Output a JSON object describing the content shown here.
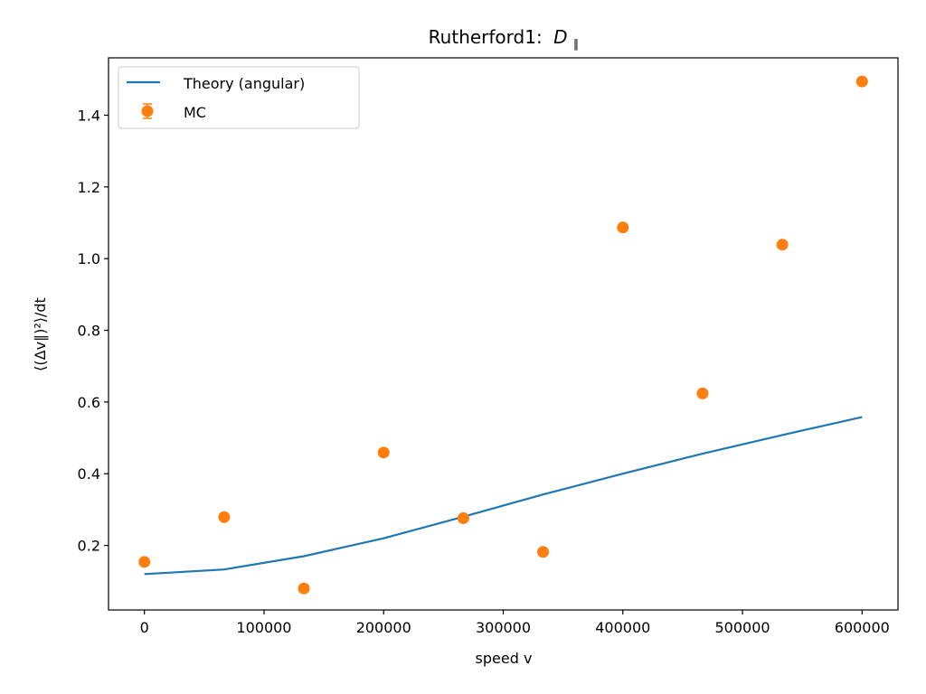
{
  "chart_data": {
    "type": "scatter",
    "title": "Rutherford1:",
    "title_math": "D",
    "title_sub": "∥",
    "xlabel": "speed v",
    "ylabel": "⟨(Δv∥)²⟩/dt",
    "xlim": [
      -30000,
      630000
    ],
    "ylim": [
      0.02,
      1.56
    ],
    "x_ticks": [
      0,
      100000,
      200000,
      300000,
      400000,
      500000,
      600000
    ],
    "x_tick_labels": [
      "0",
      "100000",
      "200000",
      "300000",
      "400000",
      "500000",
      "600000"
    ],
    "y_ticks": [
      0.2,
      0.4,
      0.6,
      0.8,
      1.0,
      1.2,
      1.4
    ],
    "y_tick_labels": [
      "0.2",
      "0.4",
      "0.6",
      "0.8",
      "1.0",
      "1.2",
      "1.4"
    ],
    "grid": false,
    "legend_position": "upper-left",
    "series": [
      {
        "name": "Theory (angular)",
        "kind": "line",
        "color": "#1f77b4",
        "x": [
          0,
          66667,
          133333,
          200000,
          266667,
          333333,
          400000,
          466667,
          533333,
          600000
        ],
        "y": [
          0.12,
          0.133,
          0.17,
          0.22,
          0.28,
          0.342,
          0.4,
          0.456,
          0.508,
          0.558
        ]
      },
      {
        "name": "MC",
        "kind": "scatter",
        "color": "#ff7f0e",
        "x": [
          0,
          66667,
          133333,
          200000,
          266667,
          333333,
          400000,
          466667,
          533333,
          600000
        ],
        "y": [
          0.154,
          0.279,
          0.08,
          0.459,
          0.276,
          0.182,
          1.087,
          0.624,
          1.039,
          1.494
        ]
      }
    ]
  }
}
